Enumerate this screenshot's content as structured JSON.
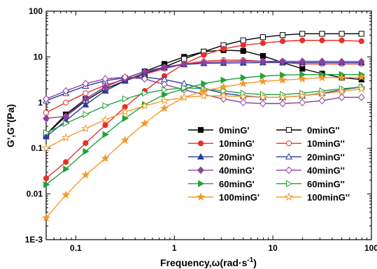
{
  "chart_data": {
    "type": "line",
    "xlabel": "Frequency,ω(rad·s",
    "xlabel_sup": "-1",
    "xlabel_end": ")",
    "ylabel": "G',G''(Pa)",
    "x_scale": "log",
    "y_scale": "log",
    "xlim": [
      0.05,
      100
    ],
    "ylim": [
      0.001,
      100
    ],
    "x_ticks": [
      {
        "value": 0.1,
        "label": "0.1"
      },
      {
        "value": 1,
        "label": "1"
      },
      {
        "value": 10,
        "label": "10"
      },
      {
        "value": 100,
        "label": "100"
      }
    ],
    "y_ticks": [
      {
        "value": 0.001,
        "label": "1E-3"
      },
      {
        "value": 0.01,
        "label": "0.01"
      },
      {
        "value": 0.1,
        "label": "0.1"
      },
      {
        "value": 1,
        "label": "1"
      },
      {
        "value": 10,
        "label": "10"
      },
      {
        "value": 100,
        "label": "100"
      }
    ],
    "legend_position": "bottom-right",
    "x": [
      0.05,
      0.0792,
      0.1256,
      0.199,
      0.3155,
      0.5,
      0.7924,
      1.256,
      1.99,
      3.155,
      5,
      7.924,
      12.56,
      19.9,
      31.55,
      50,
      79.24
    ],
    "series": [
      {
        "name": "0minG'",
        "color": "#000000",
        "marker": "square",
        "filled": true,
        "values": [
          0.2,
          0.55,
          1.2,
          2.2,
          3.4,
          4.8,
          7.0,
          10.0,
          13.0,
          14.0,
          13.5,
          10.5,
          7.5,
          5.5,
          4.3,
          3.5,
          3.2
        ]
      },
      {
        "name": "0minG''",
        "color": "#000000",
        "marker": "square",
        "filled": false,
        "values": [
          0.2,
          0.5,
          1.1,
          2.0,
          3.0,
          4.2,
          6.0,
          9.0,
          13.0,
          18.0,
          23.0,
          27.0,
          30.0,
          32.0,
          32.0,
          32.0,
          32.0
        ]
      },
      {
        "name": "10minG'",
        "color": "#e8302a",
        "marker": "circle",
        "filled": true,
        "values": [
          0.022,
          0.05,
          0.13,
          0.32,
          0.8,
          1.8,
          3.8,
          7.0,
          11.0,
          15.0,
          18.0,
          20.0,
          22.0,
          23.0,
          23.0,
          23.0,
          22.0
        ]
      },
      {
        "name": "10minG''",
        "color": "#e8302a",
        "marker": "circle",
        "filled": false,
        "values": [
          0.6,
          1.0,
          1.6,
          2.4,
          3.2,
          4.2,
          5.5,
          7.0,
          8.0,
          8.5,
          8.5,
          8.0,
          7.5,
          7.0,
          7.0,
          7.0,
          7.0
        ]
      },
      {
        "name": "20minG'",
        "color": "#2b3d9e",
        "marker": "triangle-up",
        "filled": true,
        "values": [
          0.18,
          0.4,
          0.9,
          1.8,
          3.0,
          4.5,
          5.8,
          6.8,
          7.2,
          7.3,
          7.4,
          7.5,
          7.5,
          7.5,
          7.5,
          7.5,
          7.5
        ]
      },
      {
        "name": "20minG''",
        "color": "#2b3d9e",
        "marker": "triangle-up",
        "filled": false,
        "values": [
          1.1,
          1.6,
          2.3,
          3.0,
          3.5,
          3.6,
          3.2,
          2.6,
          2.0,
          1.6,
          1.4,
          1.3,
          1.3,
          1.4,
          1.6,
          1.9,
          2.2
        ]
      },
      {
        "name": "40minG'",
        "color": "#8e3e9e",
        "marker": "diamond",
        "filled": true,
        "values": [
          0.45,
          0.5,
          1.2,
          2.2,
          3.4,
          4.8,
          6.0,
          7.0,
          7.5,
          7.8,
          8.0,
          8.0,
          8.0,
          8.0,
          8.0,
          7.9,
          7.9
        ]
      },
      {
        "name": "40minG''",
        "color": "#8e3e9e",
        "marker": "diamond",
        "filled": false,
        "values": [
          1.2,
          1.8,
          2.6,
          3.3,
          3.6,
          3.3,
          2.5,
          1.9,
          1.5,
          1.2,
          1.0,
          0.95,
          0.95,
          1.0,
          1.1,
          1.3,
          1.3
        ]
      },
      {
        "name": "60minG'",
        "color": "#21a33a",
        "marker": "triangle-right",
        "filled": true,
        "values": [
          0.016,
          0.035,
          0.085,
          0.2,
          0.45,
          0.9,
          1.5,
          2.0,
          2.6,
          3.1,
          3.5,
          3.8,
          4.0,
          4.1,
          4.1,
          4.1,
          4.1
        ]
      },
      {
        "name": "60minG''",
        "color": "#21a33a",
        "marker": "triangle-right",
        "filled": false,
        "values": [
          0.22,
          0.35,
          0.55,
          0.85,
          1.2,
          1.6,
          1.9,
          2.1,
          2.0,
          1.8,
          1.6,
          1.5,
          1.5,
          1.6,
          1.8,
          2.0,
          2.2
        ]
      },
      {
        "name": "100minG'",
        "color": "#f39a2b",
        "marker": "star",
        "filled": true,
        "values": [
          0.003,
          0.0095,
          0.026,
          0.06,
          0.15,
          0.35,
          0.75,
          1.3,
          1.8,
          2.2,
          2.6,
          2.9,
          3.1,
          3.3,
          3.5,
          3.5,
          3.6
        ]
      },
      {
        "name": "100minG''",
        "color": "#f39a2b",
        "marker": "star",
        "filled": false,
        "values": [
          0.1,
          0.17,
          0.27,
          0.42,
          0.62,
          0.85,
          1.1,
          1.3,
          1.4,
          1.4,
          1.35,
          1.3,
          1.3,
          1.4,
          1.55,
          1.75,
          2.0
        ]
      }
    ]
  }
}
